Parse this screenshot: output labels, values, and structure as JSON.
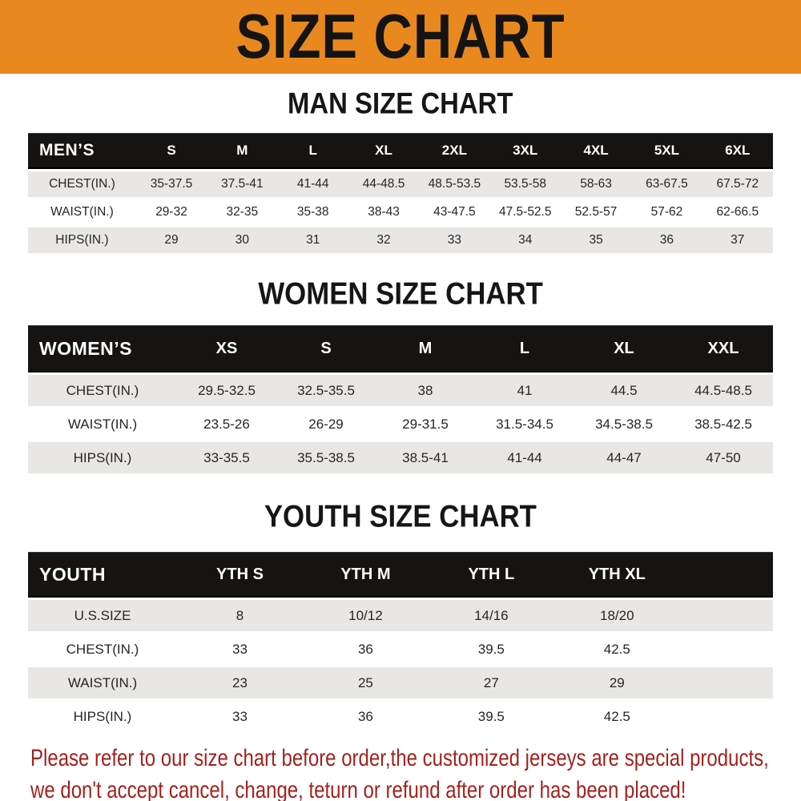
{
  "banner": {
    "title": "SIZE CHART"
  },
  "colors": {
    "banner_bg": "#E9881E",
    "header_bar_bg": "#161412",
    "stripe_gray": "#E8E7E5",
    "footer_red": "#A3221E"
  },
  "sections": [
    {
      "id": "men",
      "title": "MAN SIZE CHART",
      "header_label": "MEN’S",
      "columns": [
        "S",
        "M",
        "L",
        "XL",
        "2XL",
        "3XL",
        "4XL",
        "5XL",
        "6XL"
      ],
      "rows": [
        {
          "label": "CHEST(IN.)",
          "values": [
            "35-37.5",
            "37.5-41",
            "41-44",
            "44-48.5",
            "48.5-53.5",
            "53.5-58",
            "58-63",
            "63-67.5",
            "67.5-72"
          ]
        },
        {
          "label": "WAIST(IN.)",
          "values": [
            "29-32",
            "32-35",
            "35-38",
            "38-43",
            "43-47.5",
            "47.5-52.5",
            "52.5-57",
            "57-62",
            "62-66.5"
          ]
        },
        {
          "label": "HIPS(IN.)",
          "values": [
            "29",
            "30",
            "31",
            "32",
            "33",
            "34",
            "35",
            "36",
            "37"
          ]
        }
      ]
    },
    {
      "id": "women",
      "title": "WOMEN SIZE CHART",
      "header_label": "WOMEN’S",
      "columns": [
        "XS",
        "S",
        "M",
        "L",
        "XL",
        "XXL"
      ],
      "rows": [
        {
          "label": "CHEST(IN.)",
          "values": [
            "29.5-32.5",
            "32.5-35.5",
            "38",
            "41",
            "44.5",
            "44.5-48.5"
          ]
        },
        {
          "label": "WAIST(IN.)",
          "values": [
            "23.5-26",
            "26-29",
            "29-31.5",
            "31.5-34.5",
            "34.5-38.5",
            "38.5-42.5"
          ]
        },
        {
          "label": "HIPS(IN.)",
          "values": [
            "33-35.5",
            "35.5-38.5",
            "38.5-41",
            "41-44",
            "44-47",
            "47-50"
          ]
        }
      ]
    },
    {
      "id": "youth",
      "title": "YOUTH SIZE CHART",
      "header_label": "YOUTH",
      "columns": [
        "YTH S",
        "YTH M",
        "YTH L",
        "YTH XL"
      ],
      "rows": [
        {
          "label": "U.S.SIZE",
          "values": [
            "8",
            "10/12",
            "14/16",
            "18/20"
          ]
        },
        {
          "label": "CHEST(IN.)",
          "values": [
            "33",
            "36",
            "39.5",
            "42.5"
          ]
        },
        {
          "label": "WAIST(IN.)",
          "values": [
            "23",
            "25",
            "27",
            "29"
          ]
        },
        {
          "label": "HIPS(IN.)",
          "values": [
            "33",
            "36",
            "39.5",
            "42.5"
          ]
        }
      ]
    }
  ],
  "footer": {
    "line1": "Please refer to our size chart before order,the customized jerseys are special products,",
    "line2": "we don't accept cancel, change, teturn or refund after order has been placed!"
  }
}
